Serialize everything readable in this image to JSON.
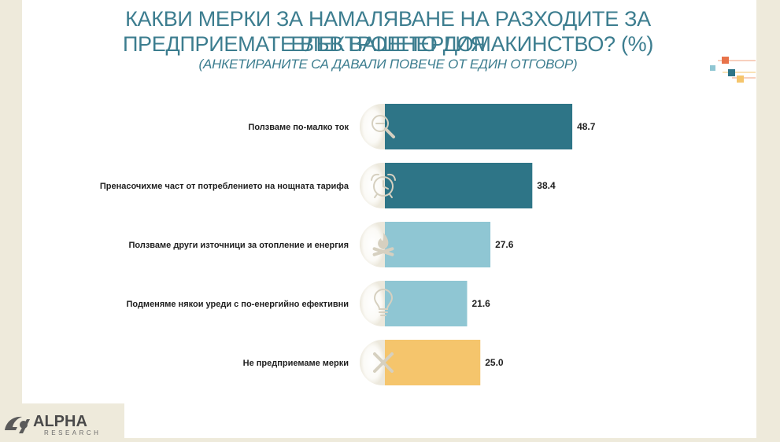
{
  "header": {
    "title_line1": "КАКВИ МЕРКИ ЗА НАМАЛЯВАНЕ НА РАЗХОДИТЕ ЗА ЕЛЕКТРОЕНЕРГИЯ",
    "title_line2": "ПРЕДПРИЕМАТЕ ВЪВ ВАШЕТО ДОМАКИНСТВО? (%)",
    "subtitle": "(АНКЕТИРАНИТЕ СА ДАВАЛИ ПОВЕЧЕ ОТ ЕДИН ОТГОВОР)"
  },
  "chart_data": {
    "type": "bar",
    "orientation": "horizontal",
    "categories": [
      "Ползваме по-малко ток",
      "Пренасочихме част от потреблението на нощната тарифа",
      "Ползваме други източници за отопление и енергия",
      "Подменяме някои уреди с по-енергийно ефективни",
      "Не предприемаме мерки"
    ],
    "values": [
      48.7,
      38.4,
      27.6,
      21.6,
      25.0
    ],
    "value_labels": [
      "48.7",
      "38.4",
      "27.6",
      "21.6",
      "25.0"
    ],
    "bar_colors": [
      "#2e7587",
      "#2e7587",
      "#8fc6d3",
      "#8fc6d3",
      "#f5c56c"
    ],
    "icons": [
      "magnifier-minus-icon",
      "alarm-clock-icon",
      "campfire-icon",
      "lightbulb-icon",
      "cross-icon"
    ],
    "grid": false,
    "legend": "none"
  },
  "logo": {
    "name": "ALPHA",
    "tagline": "RESEARCH"
  },
  "colors": {
    "title": "#3c7d8f",
    "dark_teal": "#2e7587",
    "light_teal": "#8fc6d3",
    "gold": "#f5c56c",
    "orange_accent": "#e8734a"
  }
}
